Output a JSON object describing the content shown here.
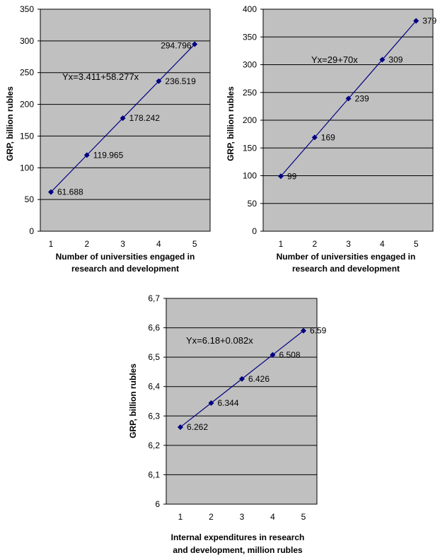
{
  "colors": {
    "plot_bg": "#c0c0c0",
    "series": "#000080",
    "grid": "#000000"
  },
  "chart_data": [
    {
      "type": "line",
      "x": [
        1,
        2,
        3,
        4,
        5
      ],
      "values": [
        61.688,
        119.965,
        178.242,
        236.519,
        294.796
      ],
      "point_labels": [
        "61.688",
        "119.965",
        "178.242",
        "236.519",
        "294.796"
      ],
      "ylim": [
        0,
        350
      ],
      "y_ticks": [
        "0",
        "50",
        "100",
        "150",
        "200",
        "250",
        "300",
        "350"
      ],
      "x_ticks": [
        "1",
        "2",
        "3",
        "4",
        "5"
      ],
      "ylabel": "GRP, billion rubles",
      "xlabel_lines": [
        "Number of universities engaged in",
        "research and development"
      ],
      "equation": "Yx=3.411+58.277x",
      "grid": true
    },
    {
      "type": "line",
      "x": [
        1,
        2,
        3,
        4,
        5
      ],
      "values": [
        99,
        169,
        239,
        309,
        379
      ],
      "point_labels": [
        "99",
        "169",
        "239",
        "309",
        "379"
      ],
      "ylim": [
        0,
        400
      ],
      "y_ticks": [
        "0",
        "50",
        "100",
        "150",
        "200",
        "250",
        "300",
        "350",
        "400"
      ],
      "x_ticks": [
        "1",
        "2",
        "3",
        "4",
        "5"
      ],
      "ylabel": "GRP, billion rubles",
      "xlabel_lines": [
        "Number of universities engaged in",
        "research and development"
      ],
      "equation": "Yx=29+70x",
      "grid": true
    },
    {
      "type": "line",
      "x": [
        1,
        2,
        3,
        4,
        5
      ],
      "values": [
        6.262,
        6.344,
        6.426,
        6.508,
        6.59
      ],
      "point_labels": [
        "6.262",
        "6.344",
        "6.426",
        "6.508",
        "6.59"
      ],
      "ylim": [
        6,
        6.7
      ],
      "y_ticks": [
        "6",
        "6,1",
        "6,2",
        "6,3",
        "6,4",
        "6,5",
        "6,6",
        "6,7"
      ],
      "x_ticks": [
        "1",
        "2",
        "3",
        "4",
        "5"
      ],
      "ylabel": "GRP, billion rubles",
      "xlabel_lines": [
        "Internal expenditures in research",
        "and development, million rubles"
      ],
      "equation": "Yx=6.18+0.082x",
      "grid": true
    }
  ]
}
